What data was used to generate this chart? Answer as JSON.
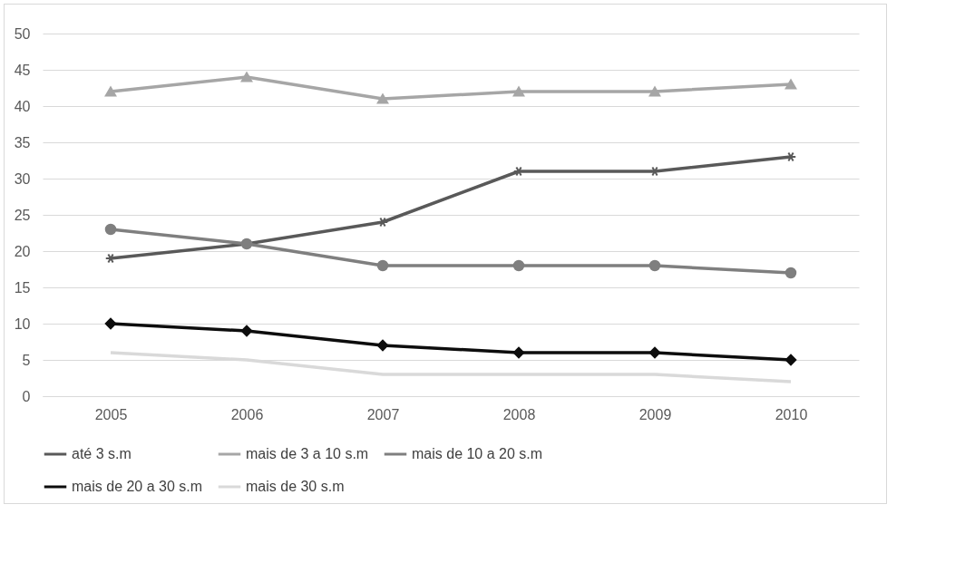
{
  "chart_data": {
    "type": "line",
    "categories": [
      "2005",
      "2006",
      "2007",
      "2008",
      "2009",
      "2010"
    ],
    "ylim": [
      0,
      50
    ],
    "yticks": [
      0,
      5,
      10,
      15,
      20,
      25,
      30,
      35,
      40,
      45,
      50
    ],
    "grid": "y",
    "legend": "bottom",
    "series": [
      {
        "name": "até 3 s.m",
        "color": "#595959",
        "marker": "cross",
        "values": [
          19,
          21,
          24,
          31,
          31,
          33
        ]
      },
      {
        "name": "mais de 3 a 10 s.m",
        "color": "#a6a6a6",
        "marker": "triangle",
        "values": [
          42,
          44,
          41,
          42,
          42,
          43
        ]
      },
      {
        "name": "mais de 10 a 20 s.m",
        "color": "#7f7f7f",
        "marker": "circle",
        "values": [
          23,
          21,
          18,
          18,
          18,
          17
        ]
      },
      {
        "name": "mais de 20 a 30 s.m",
        "color": "#0d0d0d",
        "marker": "diamond",
        "values": [
          10,
          9,
          7,
          6,
          6,
          5
        ]
      },
      {
        "name": "mais de 30 s.m",
        "color": "#d9d9d9",
        "marker": "none",
        "values": [
          6,
          5,
          3,
          3,
          3,
          2
        ]
      }
    ]
  }
}
